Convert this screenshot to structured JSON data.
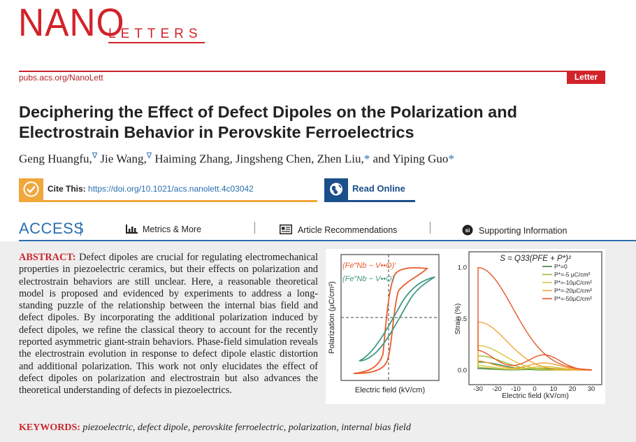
{
  "journal": {
    "logo_main": "NANO",
    "logo_sub": "LETTERS",
    "url": "pubs.acs.org/NanoLett",
    "article_type": "Letter"
  },
  "article": {
    "title": "Deciphering the Effect of Defect Dipoles on the Polarization and Electrostrain Behavior in Perovskite Ferroelectrics",
    "authors": [
      {
        "name": "Geng Huangfu,",
        "mark": "∇"
      },
      {
        "name": "Jie Wang,",
        "mark": "∇"
      },
      {
        "name": "Haiming Zhang,",
        "mark": ""
      },
      {
        "name": "Jingsheng Chen,",
        "mark": ""
      },
      {
        "name": "Zhen Liu,",
        "mark": "*"
      },
      {
        "name": "and Yiping Guo",
        "mark": "*"
      }
    ]
  },
  "cite": {
    "label": "Cite This:",
    "doi": "https://doi.org/10.1021/acs.nanolett.4c03042",
    "read_online": "Read Online"
  },
  "access": {
    "label": "ACCESS",
    "metrics": "Metrics & More",
    "recommendations": "Article Recommendations",
    "supporting": "Supporting Information"
  },
  "abstract": {
    "label": "ABSTRACT:",
    "text": "Defect dipoles are crucial for regulating electromechanical properties in piezoelectric ceramics, but their effects on polarization and electrostrain behaviors are still unclear. Here, a reasonable theoretical model is proposed and evidenced by experiments to address a long-standing puzzle of the relationship between the internal bias field and defect dipoles. By incorporating the additional polarization induced by defect dipoles, we refine the classical theory to account for the recently reported asymmetric giant-strain behaviors. Phase-field simulation reveals the electrostrain evolution in response to defect dipole elastic distortion and additional polarization. This work not only elucidates the effect of defect dipoles on polarization and electrostrain but also advances the theoretical understanding of defects in piezoelectrics."
  },
  "keywords": {
    "label": "KEYWORDS:",
    "text": "piezoelectric, defect dipole, perovskite ferroelectric, polarization, internal bias field"
  },
  "colors": {
    "brand_red": "#d2232a",
    "link_blue": "#2a6fb0",
    "cite_orange": "#f0a73b",
    "read_blue": "#1b4f8a",
    "curve_orange": "#ea5b2b",
    "curve_teal": "#3f9a82"
  },
  "chart_data": [
    {
      "type": "line",
      "title": "",
      "xlabel": "Electric field (kV/cm)",
      "ylabel": "Polarization (µC/cm²)",
      "legend": [
        "(Fe‴Nb − V••O)′",
        "(Fe″Nb − V••O)"
      ],
      "series": [
        {
          "name": "(Fe‴Nb − V••O)′",
          "color": "#ea5b2b"
        },
        {
          "name": "(Fe″Nb − V••O)",
          "color": "#3f9a82"
        }
      ]
    },
    {
      "type": "line",
      "title": "S = Q33(PFE + P*)²",
      "xlabel": "Electric field (kV/cm)",
      "ylabel": "Strain (%)",
      "xlim": [
        -30,
        30
      ],
      "ylim": [
        -0.1,
        1.1
      ],
      "x_ticks": [
        -30,
        -20,
        -10,
        0,
        10,
        20,
        30
      ],
      "y_ticks": [
        "0.0",
        "0.5",
        "1.0"
      ],
      "legend_position": "top-right",
      "series": [
        {
          "name": "P*=0",
          "color": "#3f7d3a",
          "peak": 0.08,
          "width": 0.04
        },
        {
          "name": "P*=-5 µC/cm²",
          "color": "#9bbf3a",
          "peak": 0.14,
          "width": 0.06
        },
        {
          "name": "P*=-10µC/cm²",
          "color": "#d8c640",
          "peak": 0.24,
          "width": 0.1
        },
        {
          "name": "P*=-20µC/cm²",
          "color": "#f2a33a",
          "peak": 0.47,
          "width": 0.18
        },
        {
          "name": "P*=-50µC/cm²",
          "color": "#e8562a",
          "peak": 1.0,
          "width": 0.35
        }
      ]
    }
  ]
}
